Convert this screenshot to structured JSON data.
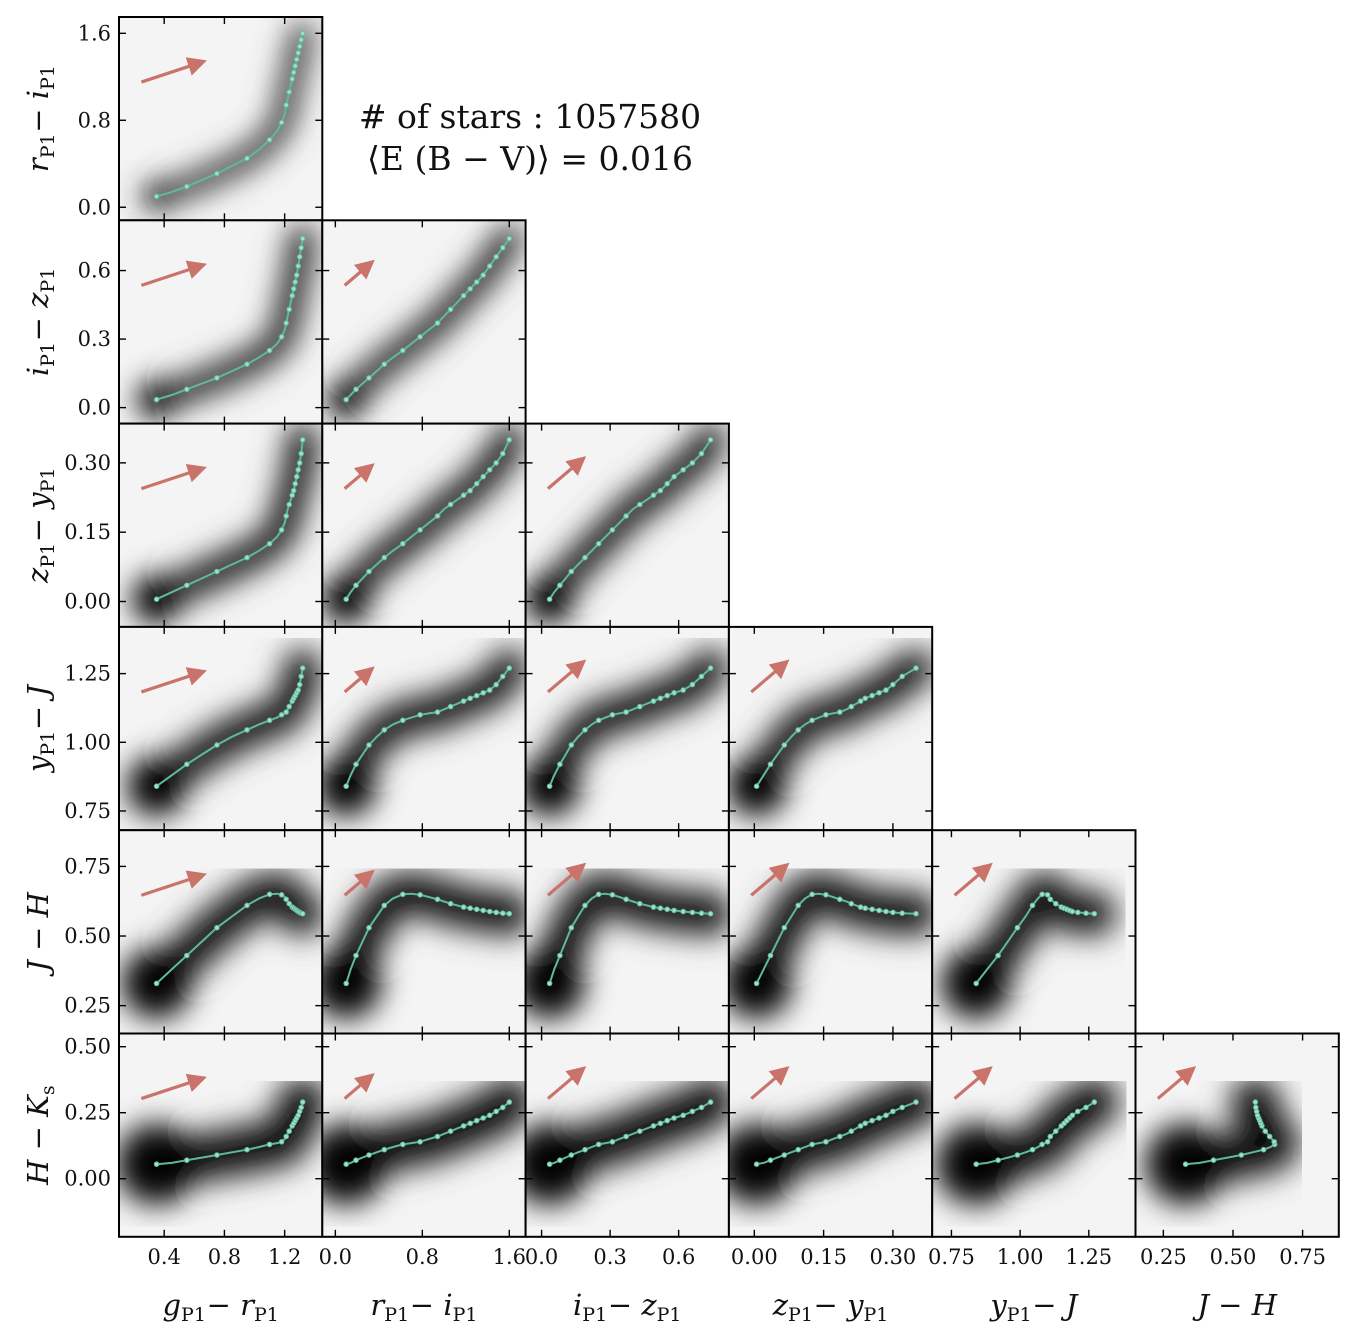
{
  "chart_data": {
    "type": "scatter",
    "layout": "corner",
    "annotation": {
      "line1": "# of stars : 1057580",
      "line2": "⟨E (B − V)⟩ = 0.016"
    },
    "colors": {
      "locus": "#5fb8a0",
      "reddening_arrow": "#c9736a",
      "density": "#000000"
    },
    "variables": [
      {
        "key": "g-r",
        "label": "gP1 − rP1",
        "label_main": "g",
        "label_sub": "P1",
        "label_tail": " − r",
        "label_sub2": "P1",
        "range": [
          0.1,
          1.45
        ],
        "ticks": [
          0.4,
          0.8,
          1.2
        ],
        "tick_labels": [
          "0.4",
          "0.8",
          "1.2"
        ]
      },
      {
        "key": "r-i",
        "label": "rP1 − iP1",
        "label_main": "r",
        "label_sub": "P1",
        "label_tail": " − i",
        "label_sub2": "P1",
        "range": [
          -0.12,
          1.75
        ],
        "ticks": [
          0.0,
          0.8,
          1.6
        ],
        "tick_labels": [
          "0.0",
          "0.8",
          "1.6"
        ]
      },
      {
        "key": "i-z",
        "label": "iP1 − zP1",
        "label_main": "i",
        "label_sub": "P1",
        "label_tail": " − z",
        "label_sub2": "P1",
        "range": [
          -0.07,
          0.82
        ],
        "ticks": [
          0.0,
          0.3,
          0.6
        ],
        "tick_labels": [
          "0.0",
          "0.3",
          "0.6"
        ]
      },
      {
        "key": "z-y",
        "label": "zP1 − yP1",
        "label_main": "z",
        "label_sub": "P1",
        "label_tail": " − y",
        "label_sub2": "P1",
        "range": [
          -0.055,
          0.385
        ],
        "ticks": [
          0.0,
          0.15,
          0.3
        ],
        "tick_labels": [
          "0.00",
          "0.15",
          "0.30"
        ]
      },
      {
        "key": "y-J",
        "label": "yP1 − J",
        "label_main": "y",
        "label_sub": "P1",
        "label_tail": " − J",
        "label_sub2": "",
        "range": [
          0.68,
          1.42
        ],
        "ticks": [
          0.75,
          1.0,
          1.25
        ],
        "tick_labels": [
          "0.75",
          "1.00",
          "1.25"
        ]
      },
      {
        "key": "J-H",
        "label": "J − H",
        "label_main": "J",
        "label_sub": "",
        "label_tail": " − H",
        "label_sub2": "",
        "range": [
          0.15,
          0.88
        ],
        "ticks": [
          0.25,
          0.5,
          0.75
        ],
        "tick_labels": [
          "0.25",
          "0.50",
          "0.75"
        ]
      },
      {
        "key": "H-K",
        "label": "H − Ks",
        "label_main": "H",
        "label_sub": "",
        "label_tail": " − K",
        "label_sub2": "s",
        "range": [
          -0.22,
          0.55
        ],
        "ticks": [
          0.0,
          0.25,
          0.5
        ],
        "tick_labels": [
          "0.00",
          "0.25",
          "0.50"
        ]
      }
    ],
    "stellar_locus": {
      "g-r": [
        0.35,
        0.45,
        0.55,
        0.65,
        0.75,
        0.85,
        0.95,
        1.03,
        1.1,
        1.15,
        1.18,
        1.2,
        1.21,
        1.22,
        1.23,
        1.24,
        1.25,
        1.26,
        1.27,
        1.28,
        1.29,
        1.3,
        1.31,
        1.32
      ],
      "r-i": [
        0.1,
        0.14,
        0.19,
        0.25,
        0.31,
        0.38,
        0.45,
        0.53,
        0.62,
        0.7,
        0.78,
        0.86,
        0.94,
        1.0,
        1.06,
        1.12,
        1.18,
        1.24,
        1.3,
        1.36,
        1.42,
        1.48,
        1.54,
        1.6
      ],
      "i-z": [
        0.035,
        0.055,
        0.08,
        0.105,
        0.13,
        0.16,
        0.19,
        0.22,
        0.25,
        0.28,
        0.31,
        0.34,
        0.37,
        0.4,
        0.43,
        0.46,
        0.49,
        0.52,
        0.55,
        0.58,
        0.62,
        0.66,
        0.7,
        0.74
      ],
      "z-y": [
        0.005,
        0.02,
        0.035,
        0.05,
        0.065,
        0.08,
        0.095,
        0.11,
        0.125,
        0.14,
        0.155,
        0.17,
        0.185,
        0.2,
        0.21,
        0.22,
        0.23,
        0.24,
        0.255,
        0.27,
        0.285,
        0.3,
        0.32,
        0.35
      ],
      "y-J": [
        0.84,
        0.88,
        0.92,
        0.955,
        0.99,
        1.02,
        1.045,
        1.065,
        1.08,
        1.09,
        1.1,
        1.105,
        1.11,
        1.12,
        1.13,
        1.14,
        1.15,
        1.16,
        1.17,
        1.18,
        1.19,
        1.21,
        1.24,
        1.27
      ],
      "J-H": [
        0.33,
        0.38,
        0.43,
        0.48,
        0.53,
        0.57,
        0.61,
        0.635,
        0.65,
        0.652,
        0.648,
        0.64,
        0.632,
        0.624,
        0.616,
        0.61,
        0.604,
        0.6,
        0.596,
        0.592,
        0.588,
        0.585,
        0.582,
        0.58
      ],
      "H-K": [
        0.055,
        0.06,
        0.07,
        0.08,
        0.09,
        0.1,
        0.11,
        0.12,
        0.13,
        0.135,
        0.14,
        0.15,
        0.16,
        0.17,
        0.18,
        0.19,
        0.2,
        0.21,
        0.22,
        0.23,
        0.24,
        0.255,
        0.27,
        0.29
      ]
    }
  }
}
